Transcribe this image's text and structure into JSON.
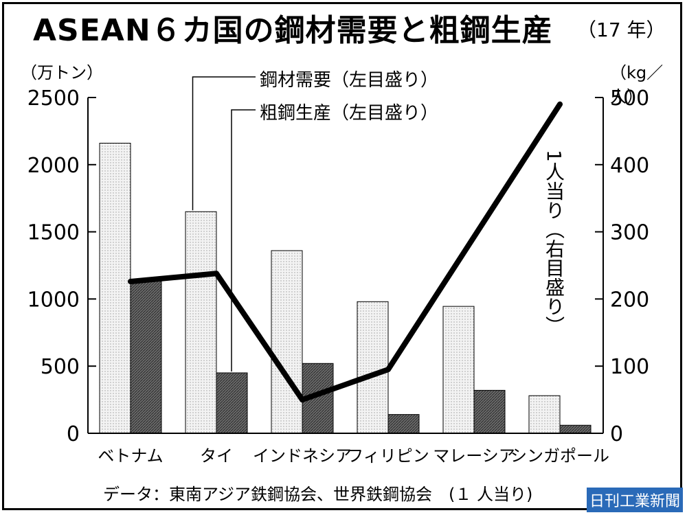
{
  "title": "ASEAN６カ国の鋼材需要と粗鋼生産",
  "title_note": "（17 年）",
  "unit_left": "（万トン）",
  "unit_right": "（kg／人）",
  "legend_demand": "鋼材需要（左目盛り）",
  "legend_production": "粗鋼生産（左目盛り）",
  "line_label": "1人当り（右目盛り）",
  "source": "データ：東南アジア鉄鋼協会、世界鉄鋼協会　(１ 人当り)",
  "credit": "日刊工業新聞",
  "chart_data": {
    "type": "bar",
    "categories": [
      "ベトナム",
      "タイ",
      "インドネシア",
      "フィリピン",
      "マレーシア",
      "シンガポール"
    ],
    "series": [
      {
        "name": "鋼材需要（左目盛り）",
        "values": [
          2160,
          1650,
          1360,
          980,
          945,
          280
        ],
        "axis": "left",
        "color": "#e8e8e8"
      },
      {
        "name": "粗鋼生産（左目盛り）",
        "values": [
          1140,
          450,
          520,
          140,
          320,
          60
        ],
        "axis": "left",
        "color": "#7a7a7a"
      },
      {
        "name": "1人当り（右目盛り）",
        "type": "line",
        "values": [
          226,
          238,
          50,
          95,
          null,
          490
        ],
        "axis": "right",
        "color": "#000000"
      }
    ],
    "ylim_left": [
      0,
      2500
    ],
    "ylim_right": [
      0,
      500
    ],
    "yticks_left": [
      "0",
      "500",
      "1000",
      "1500",
      "2000",
      "2500"
    ],
    "yticks_right": [
      "0",
      "100",
      "200",
      "300",
      "400",
      "500"
    ],
    "grid": false
  }
}
